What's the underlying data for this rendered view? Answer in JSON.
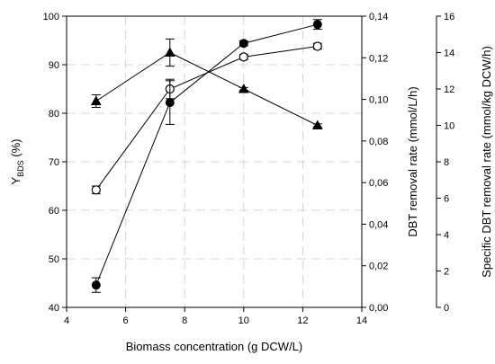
{
  "chart_data": {
    "type": "scatter",
    "xlabel": "Biomass concentration (g DCW/L)",
    "xlim": [
      4,
      14
    ],
    "x_ticks": [
      "4",
      "6",
      "8",
      "10",
      "12",
      "14"
    ],
    "y_axes": [
      {
        "label_main": "Y",
        "label_sub": "BDS",
        "label_unit": " (%)",
        "lim": [
          40,
          100
        ],
        "ticks": [
          "40",
          "50",
          "60",
          "70",
          "80",
          "90",
          "100"
        ]
      },
      {
        "label": "DBT removal rate (mmol/L/h)",
        "lim": [
          0,
          0.14
        ],
        "ticks": [
          "0,00",
          "0,02",
          "0,04",
          "0,06",
          "0,08",
          "0,10",
          "0,12",
          "0,14"
        ]
      },
      {
        "label": "Specific DBT removal rate (mmol/kg DCW/h)",
        "lim": [
          0,
          16
        ],
        "ticks": [
          "0",
          "2",
          "4",
          "6",
          "8",
          "10",
          "12",
          "14",
          "16"
        ]
      }
    ],
    "grid": true,
    "legend": "none",
    "series": [
      {
        "marker": "filled-triangle",
        "axis": "left",
        "points": [
          {
            "x": 5,
            "y": 82.5,
            "err": 1.3
          },
          {
            "x": 7.5,
            "y": 92.5,
            "err": 2.8
          },
          {
            "x": 10,
            "y": 85.0,
            "err": 0.3
          },
          {
            "x": 12.5,
            "y": 77.5,
            "err": 0.3
          }
        ]
      },
      {
        "marker": "open-circle",
        "axis": "left",
        "points": [
          {
            "x": 5,
            "y": 64.2,
            "err": 0.8
          },
          {
            "x": 7.5,
            "y": 85.0,
            "err": 2.0
          },
          {
            "x": 10,
            "y": 91.6,
            "err": 0.5
          },
          {
            "x": 12.5,
            "y": 93.8,
            "err": 0.6
          }
        ]
      },
      {
        "marker": "filled-circle",
        "axis": "left",
        "points": [
          {
            "x": 5,
            "y": 44.6,
            "err": 1.5
          },
          {
            "x": 7.5,
            "y": 82.2,
            "err": 4.5
          },
          {
            "x": 10,
            "y": 94.4,
            "err": 0.5
          },
          {
            "x": 12.5,
            "y": 98.3,
            "err": 1.0
          }
        ]
      }
    ]
  }
}
